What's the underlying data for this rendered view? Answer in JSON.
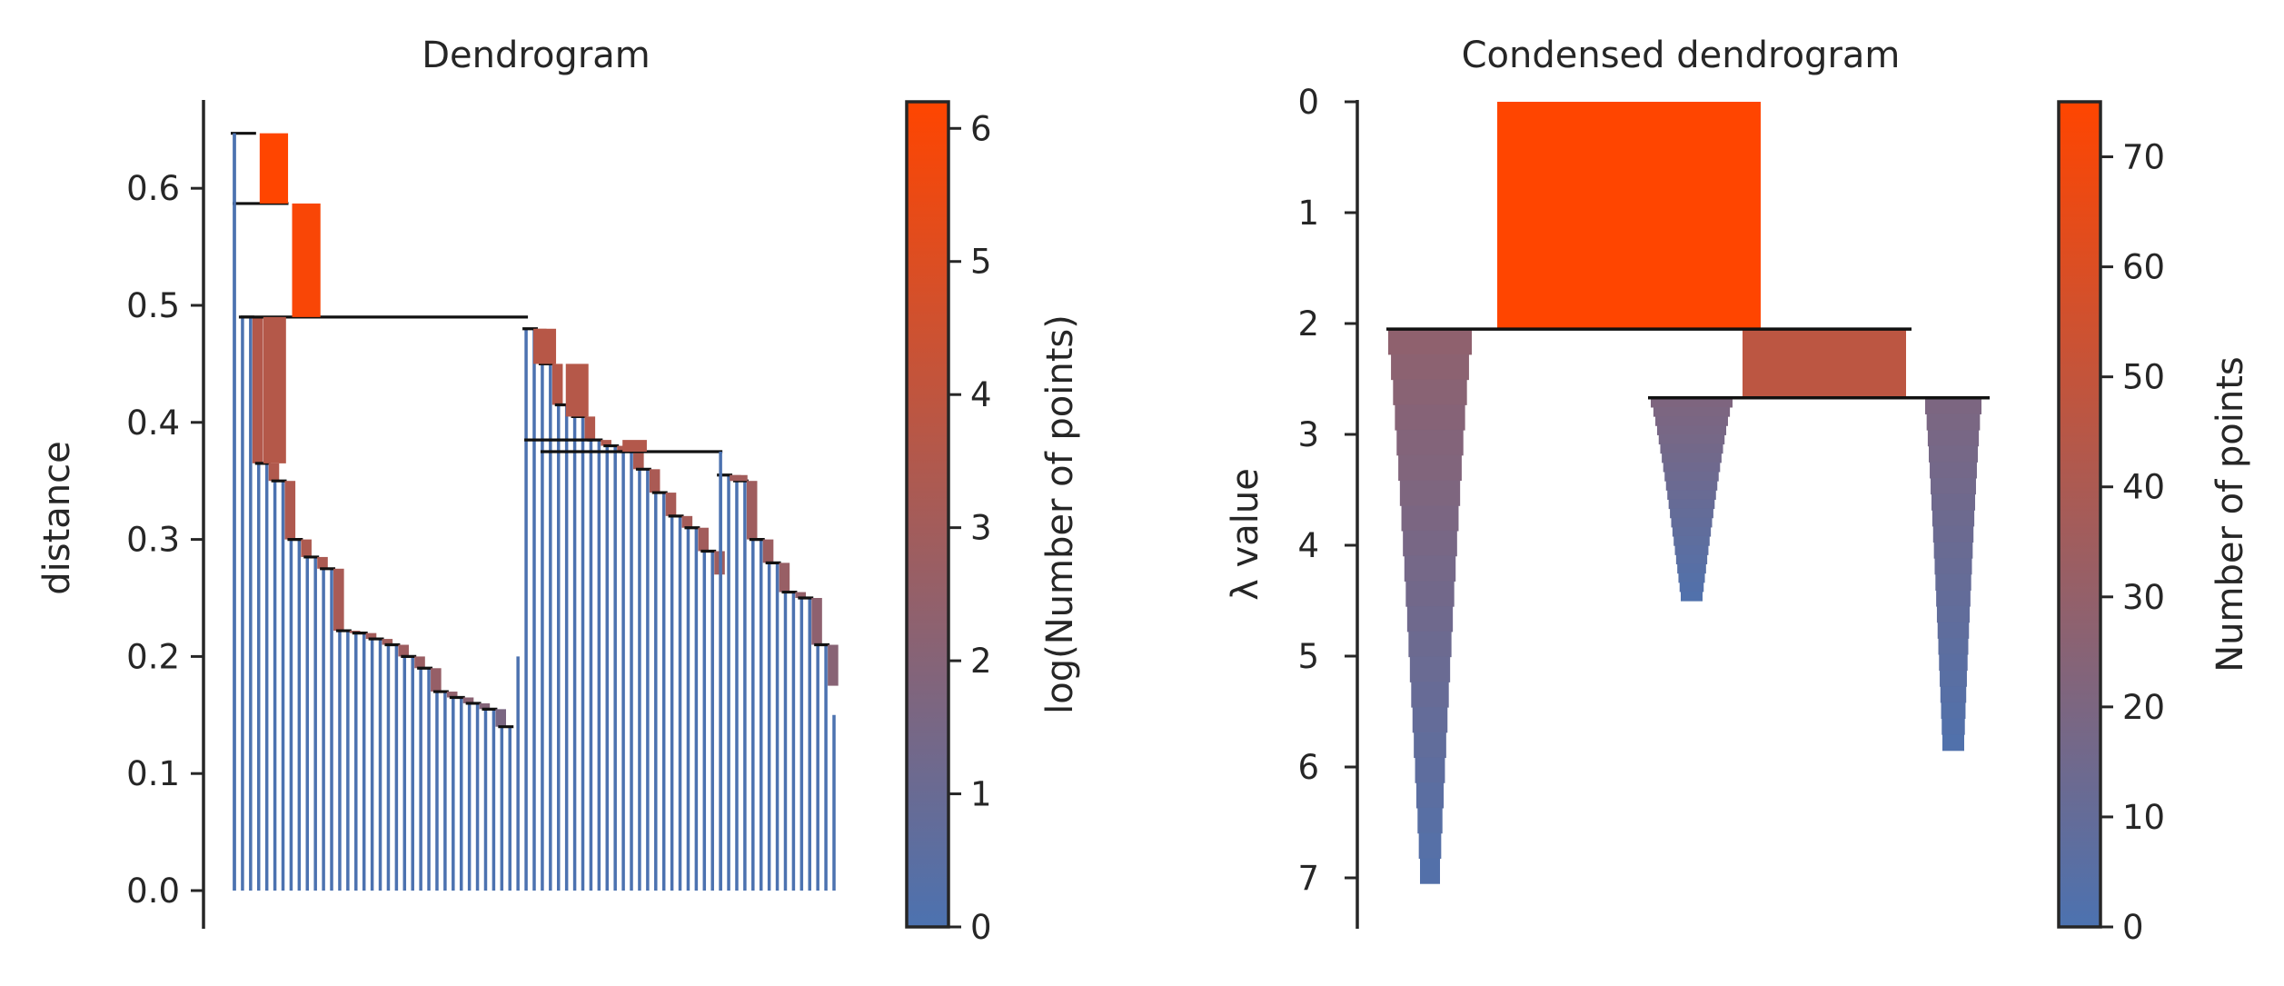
{
  "chart_data": [
    {
      "type": "dendrogram",
      "title": "Dendrogram",
      "ylabel": "distance",
      "ylim": [
        -0.035,
        0.68
      ],
      "yticks": [
        0.0,
        0.1,
        0.2,
        0.3,
        0.4,
        0.5,
        0.6
      ],
      "ytick_labels": [
        "0.0",
        "0.1",
        "0.2",
        "0.3",
        "0.4",
        "0.5",
        "0.6"
      ],
      "n_leaves": 75,
      "merge_heights": {
        "root": 0.647,
        "second": 0.587,
        "main_split": 0.49,
        "left_chain": [
          0.49,
          0.365,
          0.35,
          0.3,
          0.285,
          0.275,
          0.222,
          0.22,
          0.215,
          0.21,
          0.2,
          0.19,
          0.17,
          0.165,
          0.16,
          0.155,
          0.14
        ],
        "right_cluster": [
          0.48,
          0.45,
          0.415,
          0.405,
          0.385,
          0.38
        ],
        "right_a_chain": [
          0.375,
          0.36,
          0.34,
          0.32,
          0.31,
          0.29,
          0.27,
          0.25,
          0.245,
          0.24,
          0.235,
          0.22,
          0.215,
          0.2,
          0.195
        ],
        "right_b_chain": [
          0.355,
          0.35,
          0.3,
          0.28,
          0.255,
          0.25,
          0.21,
          0.175,
          0.155,
          0.15
        ]
      },
      "colorbar": {
        "label": "log(Number of points)",
        "range": [
          0,
          6.2
        ],
        "ticks": [
          0,
          1,
          2,
          3,
          4,
          5,
          6
        ],
        "tick_labels": [
          "0",
          "1",
          "2",
          "3",
          "4",
          "5",
          "6"
        ],
        "colors": [
          "#4c72b0",
          "#ff4500"
        ]
      }
    },
    {
      "type": "condensed_dendrogram",
      "title": "Condensed dendrogram",
      "ylabel": "λ value",
      "ylim": [
        0,
        7.45
      ],
      "y_inverted": true,
      "yticks": [
        0,
        1,
        2,
        3,
        4,
        5,
        6,
        7
      ],
      "ytick_labels": [
        "0",
        "1",
        "2",
        "3",
        "4",
        "5",
        "6",
        "7"
      ],
      "clusters": [
        {
          "id": "root",
          "birth": 0.0,
          "death": 2.05,
          "size": 75
        },
        {
          "id": "left",
          "parent": "root",
          "birth": 2.05,
          "death": 7.05,
          "size": 28
        },
        {
          "id": "mid-right",
          "parent": "root",
          "birth": 2.05,
          "death": 2.67,
          "size": 47
        },
        {
          "id": "middle",
          "parent": "mid-right",
          "birth": 2.67,
          "death": 4.5,
          "size": 21
        },
        {
          "id": "right",
          "parent": "mid-right",
          "birth": 2.67,
          "death": 5.85,
          "size": 20
        }
      ],
      "colorbar": {
        "label": "Number of points",
        "range": [
          0,
          75
        ],
        "ticks": [
          0,
          10,
          20,
          30,
          40,
          50,
          60,
          70
        ],
        "tick_labels": [
          "0",
          "10",
          "20",
          "30",
          "40",
          "50",
          "60",
          "70"
        ],
        "colors": [
          "#4c72b0",
          "#ff4500"
        ]
      }
    }
  ]
}
